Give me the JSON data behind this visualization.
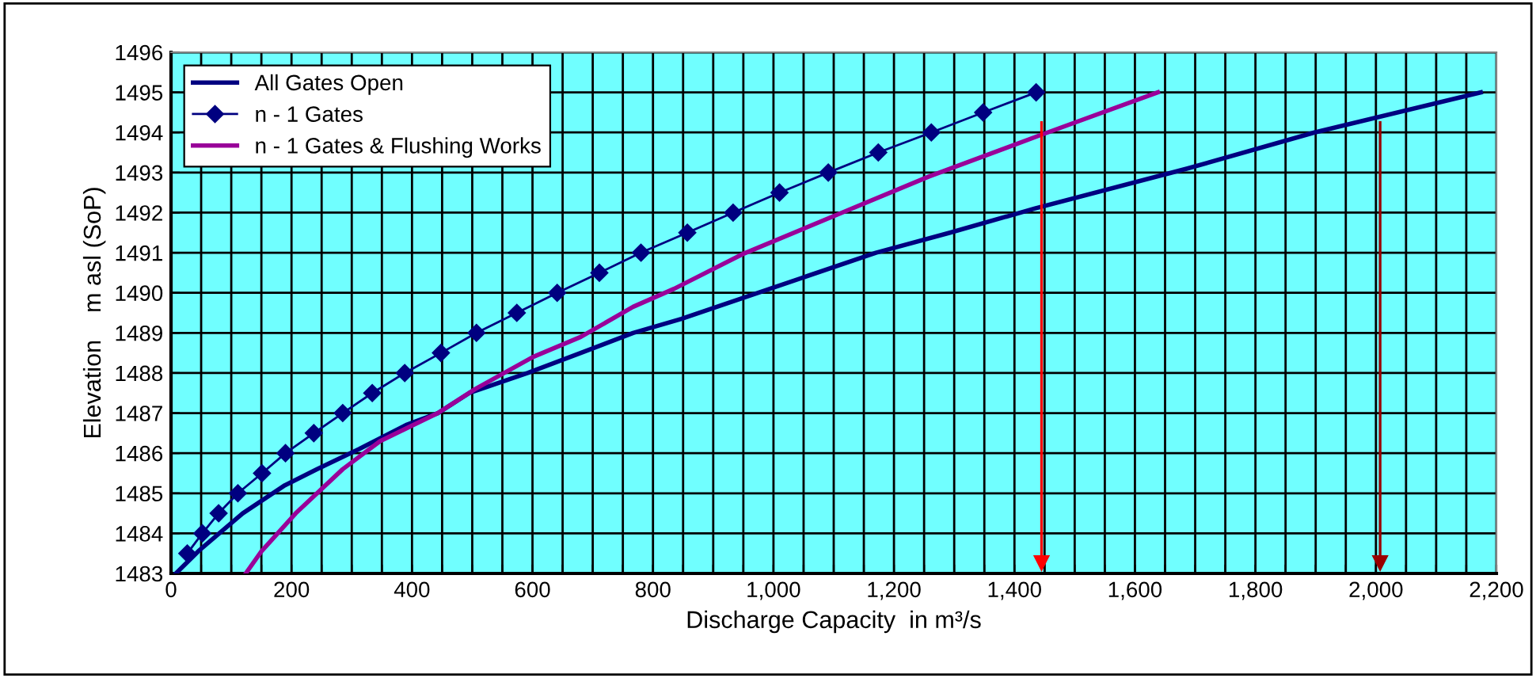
{
  "chart_data": {
    "type": "line",
    "xlabel": "Discharge Capacity  in m³/s",
    "ylabel": "Elevation    m asl (SoP)",
    "xlim": [
      0,
      2200
    ],
    "ylim": [
      1483,
      1496
    ],
    "xticks": [
      0,
      {
        "value": 50,
        "label": null
      },
      {
        "value": 100,
        "label": null
      },
      {
        "value": 150,
        "label": null
      },
      200,
      {
        "value": 250,
        "label": null
      },
      {
        "value": 300,
        "label": null
      },
      {
        "value": 350,
        "label": null
      },
      400,
      {
        "value": 450,
        "label": null
      },
      {
        "value": 500,
        "label": null
      },
      {
        "value": 550,
        "label": null
      },
      600,
      {
        "value": 650,
        "label": null
      },
      {
        "value": 700,
        "label": null
      },
      {
        "value": 750,
        "label": null
      },
      800,
      {
        "value": 850,
        "label": null
      },
      {
        "value": 900,
        "label": null
      },
      {
        "value": 950,
        "label": null
      },
      {
        "value": 1000,
        "label": "1,000"
      },
      {
        "value": 1050,
        "label": null
      },
      {
        "value": 1100,
        "label": null
      },
      {
        "value": 1150,
        "label": null
      },
      {
        "value": 1200,
        "label": "1,200"
      },
      {
        "value": 1250,
        "label": null
      },
      {
        "value": 1300,
        "label": null
      },
      {
        "value": 1350,
        "label": null
      },
      {
        "value": 1400,
        "label": "1,400"
      },
      {
        "value": 1450,
        "label": null
      },
      {
        "value": 1500,
        "label": null
      },
      {
        "value": 1550,
        "label": null
      },
      {
        "value": 1600,
        "label": "1,600"
      },
      {
        "value": 1650,
        "label": null
      },
      {
        "value": 1700,
        "label": null
      },
      {
        "value": 1750,
        "label": null
      },
      {
        "value": 1800,
        "label": "1,800"
      },
      {
        "value": 1850,
        "label": null
      },
      {
        "value": 1900,
        "label": null
      },
      {
        "value": 1950,
        "label": null
      },
      {
        "value": 2000,
        "label": "2,000"
      },
      {
        "value": 2050,
        "label": null
      },
      {
        "value": 2100,
        "label": null
      },
      {
        "value": 2150,
        "label": null
      },
      {
        "value": 2200,
        "label": "2,200"
      }
    ],
    "yticks": [
      1483,
      1484,
      1485,
      1486,
      1487,
      1488,
      1489,
      1490,
      1491,
      1492,
      1493,
      1494,
      1495,
      1496
    ],
    "grid": true,
    "legend": "top left",
    "series": [
      {
        "name": "All Gates Open",
        "color": "#000080",
        "marker": "none",
        "x": [
          8,
          45,
          119,
          189,
          242,
          312,
          390,
          443,
          495,
          592,
          680,
          767,
          847,
          994,
          1170,
          1293,
          1433,
          1687,
          1898,
          2174
        ],
        "values": [
          1483,
          1483.55,
          1484.5,
          1485.2,
          1485.6,
          1486.1,
          1486.7,
          1487.0,
          1487.5,
          1488.0,
          1488.5,
          1489.0,
          1489.35,
          1490.1,
          1491.0,
          1491.5,
          1492.1,
          1493.1,
          1494.0,
          1495.0
        ]
      },
      {
        "name": "n - 1 Gates",
        "color": "#000080",
        "marker": "diamond",
        "x": [
          27,
          52,
          79,
          111,
          151,
          190,
          237,
          285,
          334,
          388,
          448,
          507,
          574,
          641,
          711,
          780,
          857,
          933,
          1010,
          1091,
          1174,
          1262,
          1348,
          1436
        ],
        "values": [
          1483.5,
          1484,
          1484.5,
          1485,
          1485.5,
          1486,
          1486.5,
          1487,
          1487.5,
          1488,
          1488.5,
          1489,
          1489.5,
          1490,
          1490.5,
          1491,
          1491.5,
          1492,
          1492.5,
          1493,
          1493.5,
          1494,
          1494.5,
          1495
        ]
      },
      {
        "name": "n - 1 Gates & Flushing Works",
        "color": "#990099",
        "marker": "none",
        "x": [
          124,
          150,
          207,
          285,
          347,
          443,
          505,
          601,
          680,
          767,
          835,
          951,
          1109,
          1258,
          1446,
          1638
        ],
        "values": [
          1483,
          1483.55,
          1484.5,
          1485.6,
          1486.3,
          1487.0,
          1487.6,
          1488.4,
          1488.9,
          1489.65,
          1490.1,
          1490.98,
          1491.97,
          1492.9,
          1493.95,
          1495.0
        ]
      }
    ],
    "ref_lines": [
      {
        "axis": "x",
        "value": 1445,
        "color": "#ff0000"
      },
      {
        "axis": "x",
        "value": 2007,
        "color": "#990000"
      }
    ]
  }
}
